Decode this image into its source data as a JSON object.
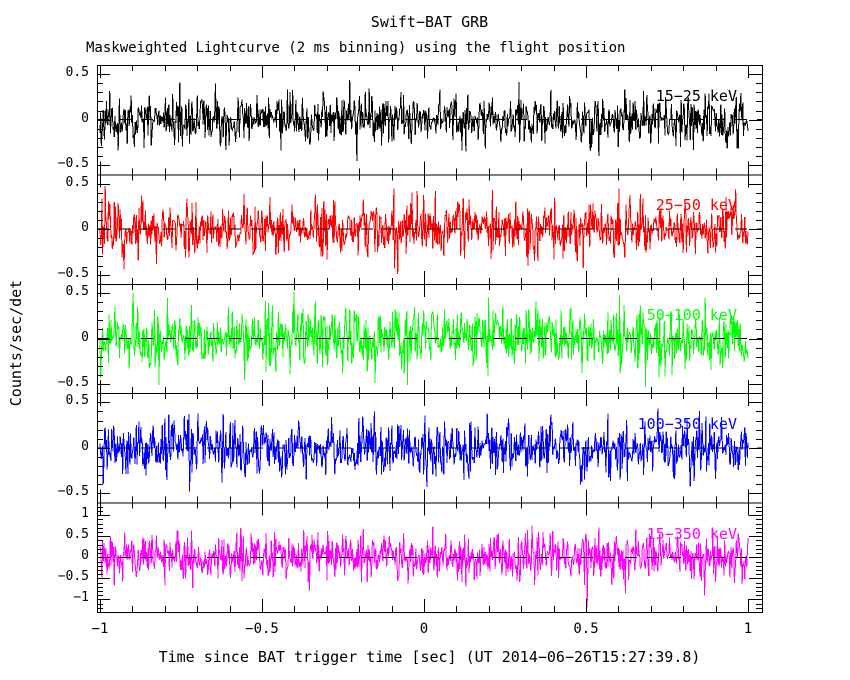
{
  "chart_data": {
    "type": "line",
    "title": "Swift−BAT GRB",
    "subtitle": "Maskweighted Lightcurve (2 ms binning) using the flight position",
    "xlabel": "Time since BAT trigger time [sec] (UT 2014−06−26T15:27:39.8)",
    "ylabel": "Counts/sec/det",
    "background": "#ffffff",
    "frame_color": "#000000",
    "grid": false,
    "x_range": [
      -1,
      1
    ],
    "bin_seconds": 0.002,
    "n_bins": 1000,
    "xticks": {
      "values": [
        -1,
        -0.5,
        0,
        0.5,
        1
      ],
      "labels": [
        "−1",
        "−0.5",
        "0",
        "0.5",
        "1"
      ],
      "minor_step": 0.1
    },
    "zero_line": {
      "value": 0,
      "style": "dashed",
      "color": "#000000"
    },
    "panels": [
      {
        "band": "15−25 keV",
        "color": "#000000",
        "ylim": [
          -0.6,
          0.6
        ],
        "yticks": {
          "values": [
            0.5,
            0,
            -0.5
          ],
          "labels": [
            "0.5",
            "0",
            "−0.5"
          ],
          "minor_step": 0.1
        },
        "series_description": "zero-mean maskweighted background noise, no burst visible",
        "noise_sigma": 0.13,
        "mean": 0,
        "seed": 11
      },
      {
        "band": "25−50 keV",
        "color": "#ff0000",
        "ylim": [
          -0.6,
          0.6
        ],
        "yticks": {
          "values": [
            0.5,
            0,
            -0.5
          ],
          "labels": [
            "0.5",
            "0",
            "−0.5"
          ],
          "minor_step": 0.1
        },
        "series_description": "zero-mean maskweighted background noise, no burst visible",
        "noise_sigma": 0.15,
        "mean": 0,
        "seed": 22
      },
      {
        "band": "50−100 keV",
        "color": "#00ff00",
        "ylim": [
          -0.6,
          0.6
        ],
        "yticks": {
          "values": [
            0.5,
            0,
            -0.5
          ],
          "labels": [
            "0.5",
            "0",
            "−0.5"
          ],
          "minor_step": 0.1
        },
        "series_description": "zero-mean maskweighted background noise, no burst visible",
        "noise_sigma": 0.16,
        "mean": 0,
        "seed": 33
      },
      {
        "band": "100−350 keV",
        "color": "#0000ff",
        "ylim": [
          -0.6,
          0.6
        ],
        "yticks": {
          "values": [
            0.5,
            0,
            -0.5
          ],
          "labels": [
            "0.5",
            "0",
            "−0.5"
          ],
          "minor_step": 0.1
        },
        "series_description": "zero-mean maskweighted background noise, no burst visible",
        "noise_sigma": 0.15,
        "mean": 0,
        "seed": 44
      },
      {
        "band": "15−350 keV",
        "color": "#ff00ff",
        "ylim": [
          -1.3,
          1.3
        ],
        "yticks": {
          "values": [
            1,
            0.5,
            0,
            -0.5,
            -1
          ],
          "labels": [
            "1",
            "0.5",
            "0",
            "−0.5",
            "−1"
          ],
          "minor_step": 0.1
        },
        "series_description": "zero-mean maskweighted background noise, no burst visible",
        "noise_sigma": 0.28,
        "mean": 0,
        "seed": 55
      }
    ]
  }
}
